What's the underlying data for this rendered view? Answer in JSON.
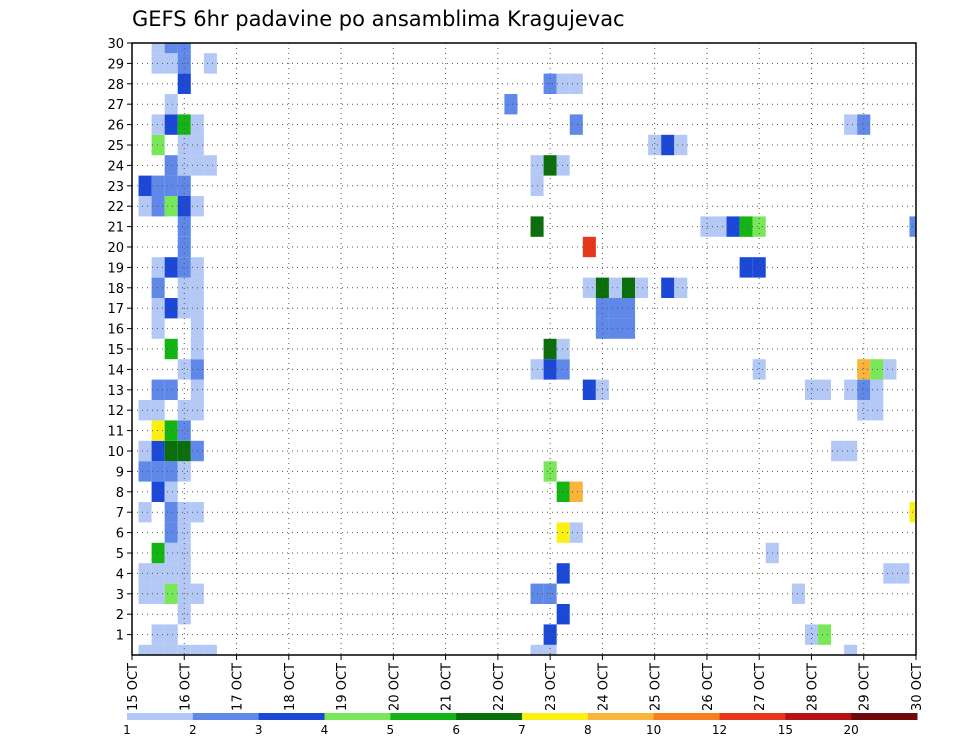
{
  "chart_data": {
    "type": "heatmap",
    "title": "GEFS 6hr padavine po ansamblima Kragujevac",
    "xlabel": "",
    "ylabel": "",
    "x_ticks": [
      "15 OCT",
      "16 OCT",
      "17 OCT",
      "18 OCT",
      "19 OCT",
      "20 OCT",
      "21 OCT",
      "22 OCT",
      "23 OCT",
      "24 OCT",
      "25 OCT",
      "26 OCT",
      "27 OCT",
      "28 OCT",
      "29 OCT",
      "30 OCT"
    ],
    "xlim": [
      "15 OCT",
      "30 OCT"
    ],
    "y_ticks": [
      "1",
      "2",
      "3",
      "4",
      "5",
      "6",
      "7",
      "8",
      "9",
      "10",
      "11",
      "12",
      "13",
      "14",
      "15",
      "16",
      "17",
      "18",
      "19",
      "20",
      "21",
      "22",
      "23",
      "24",
      "25",
      "26",
      "27",
      "28",
      "29",
      "30"
    ],
    "ylim": [
      0,
      30
    ],
    "grid": true,
    "colorbar": {
      "labels": [
        "1",
        "2",
        "3",
        "4",
        "5",
        "6",
        "7",
        "8",
        "10",
        "12",
        "15",
        "20"
      ],
      "colors": [
        "#b4c8f6",
        "#5f88e8",
        "#1c48d8",
        "#78e85a",
        "#14b414",
        "#0a6e0a",
        "#faf014",
        "#fab43c",
        "#f77f1f",
        "#e6371e",
        "#b41414",
        "#6e0a0a"
      ]
    },
    "cell_steps_per_day": 4,
    "cells": [
      [
        0,
        15.25,
        1
      ],
      [
        0,
        15.5,
        1
      ],
      [
        0,
        15.75,
        1
      ],
      [
        0,
        16,
        1
      ],
      [
        0,
        16.25,
        1
      ],
      [
        0,
        16.5,
        1
      ],
      [
        0,
        22.75,
        1
      ],
      [
        0,
        23,
        1
      ],
      [
        0,
        28.75,
        1
      ],
      [
        1,
        15.5,
        1
      ],
      [
        1,
        15.75,
        1
      ],
      [
        1,
        23,
        3
      ],
      [
        1,
        28,
        1
      ],
      [
        1,
        28.25,
        4
      ],
      [
        2,
        16,
        1
      ],
      [
        2,
        23.25,
        3
      ],
      [
        3,
        15.25,
        1
      ],
      [
        3,
        15.5,
        1
      ],
      [
        3,
        15.75,
        4
      ],
      [
        3,
        16,
        1
      ],
      [
        3,
        16.25,
        1
      ],
      [
        3,
        22.75,
        2
      ],
      [
        3,
        23,
        2
      ],
      [
        3,
        27.75,
        1
      ],
      [
        4,
        15.25,
        1
      ],
      [
        4,
        15.5,
        1
      ],
      [
        4,
        15.75,
        1
      ],
      [
        4,
        16,
        1
      ],
      [
        4,
        23.25,
        3
      ],
      [
        4,
        29.5,
        1
      ],
      [
        4,
        29.75,
        1
      ],
      [
        5,
        15.5,
        5
      ],
      [
        5,
        15.75,
        1
      ],
      [
        5,
        16,
        1
      ],
      [
        5,
        27.25,
        1
      ],
      [
        6,
        15.75,
        2
      ],
      [
        6,
        16,
        1
      ],
      [
        6,
        23.25,
        7
      ],
      [
        6,
        23.5,
        1
      ],
      [
        7,
        15.25,
        1
      ],
      [
        7,
        15.75,
        2
      ],
      [
        7,
        16,
        1
      ],
      [
        7,
        16.25,
        1
      ],
      [
        7,
        30,
        7
      ],
      [
        8,
        15.5,
        3
      ],
      [
        8,
        15.75,
        1
      ],
      [
        8,
        23.25,
        5
      ],
      [
        8,
        23.5,
        8
      ],
      [
        9,
        15.25,
        2
      ],
      [
        9,
        15.5,
        2
      ],
      [
        9,
        15.75,
        2
      ],
      [
        9,
        16,
        1
      ],
      [
        9,
        23,
        4
      ],
      [
        10,
        15.25,
        1
      ],
      [
        10,
        15.5,
        3
      ],
      [
        10,
        15.75,
        6
      ],
      [
        10,
        16,
        6
      ],
      [
        10,
        16.25,
        2
      ],
      [
        10,
        28.5,
        1
      ],
      [
        10,
        28.75,
        1
      ],
      [
        11,
        15.5,
        7
      ],
      [
        11,
        15.75,
        5
      ],
      [
        11,
        16,
        2
      ],
      [
        12,
        15.25,
        1
      ],
      [
        12,
        15.5,
        1
      ],
      [
        12,
        16,
        1
      ],
      [
        12,
        16.25,
        1
      ],
      [
        12,
        29,
        1
      ],
      [
        12,
        29.25,
        1
      ],
      [
        13,
        15.5,
        2
      ],
      [
        13,
        15.75,
        2
      ],
      [
        13,
        16.25,
        1
      ],
      [
        13,
        23.75,
        3
      ],
      [
        13,
        24,
        1
      ],
      [
        13,
        28,
        1
      ],
      [
        13,
        28.25,
        1
      ],
      [
        13,
        28.75,
        1
      ],
      [
        13,
        29,
        2
      ],
      [
        13,
        29.25,
        1
      ],
      [
        14,
        16,
        1
      ],
      [
        14,
        16.25,
        2
      ],
      [
        14,
        22.75,
        1
      ],
      [
        14,
        23,
        3
      ],
      [
        14,
        23.25,
        2
      ],
      [
        14,
        27,
        1
      ],
      [
        14,
        29,
        8
      ],
      [
        14,
        29.25,
        4
      ],
      [
        14,
        29.5,
        1
      ],
      [
        15,
        15.75,
        5
      ],
      [
        15,
        16.25,
        1
      ],
      [
        15,
        23,
        6
      ],
      [
        15,
        23.25,
        1
      ],
      [
        16,
        15.5,
        1
      ],
      [
        16,
        16.25,
        1
      ],
      [
        16,
        24,
        2
      ],
      [
        16,
        24.25,
        2
      ],
      [
        16,
        24.5,
        2
      ],
      [
        17,
        15.5,
        1
      ],
      [
        17,
        15.75,
        3
      ],
      [
        17,
        16,
        1
      ],
      [
        17,
        16.25,
        1
      ],
      [
        17,
        24,
        2
      ],
      [
        17,
        24.25,
        2
      ],
      [
        17,
        24.5,
        2
      ],
      [
        18,
        15.5,
        2
      ],
      [
        18,
        16,
        1
      ],
      [
        18,
        16.25,
        1
      ],
      [
        18,
        23.75,
        1
      ],
      [
        18,
        24,
        6
      ],
      [
        18,
        24.25,
        1
      ],
      [
        18,
        24.5,
        6
      ],
      [
        18,
        24.75,
        1
      ],
      [
        18,
        25.25,
        3
      ],
      [
        18,
        25.5,
        1
      ],
      [
        19,
        15.5,
        1
      ],
      [
        19,
        15.75,
        3
      ],
      [
        19,
        16,
        2
      ],
      [
        19,
        16.25,
        1
      ],
      [
        19,
        26.75,
        3
      ],
      [
        19,
        27,
        3
      ],
      [
        20,
        16,
        2
      ],
      [
        20,
        23.75,
        10
      ],
      [
        21,
        16,
        2
      ],
      [
        21,
        22.75,
        6
      ],
      [
        21,
        26,
        1
      ],
      [
        21,
        26.25,
        1
      ],
      [
        21,
        26.5,
        3
      ],
      [
        21,
        26.75,
        5
      ],
      [
        21,
        27,
        4
      ],
      [
        21,
        30,
        2
      ],
      [
        22,
        15.25,
        1
      ],
      [
        22,
        15.5,
        2
      ],
      [
        22,
        15.75,
        4
      ],
      [
        22,
        16,
        3
      ],
      [
        22,
        16.25,
        1
      ],
      [
        23,
        15.25,
        3
      ],
      [
        23,
        15.5,
        2
      ],
      [
        23,
        15.75,
        2
      ],
      [
        23,
        16,
        2
      ],
      [
        23,
        22.75,
        1
      ],
      [
        24,
        15.75,
        2
      ],
      [
        24,
        16,
        1
      ],
      [
        24,
        16.25,
        1
      ],
      [
        24,
        16.5,
        1
      ],
      [
        24,
        22.75,
        1
      ],
      [
        24,
        23,
        6
      ],
      [
        24,
        23.25,
        1
      ],
      [
        25,
        15.5,
        4
      ],
      [
        25,
        16,
        1
      ],
      [
        25,
        16.25,
        1
      ],
      [
        25,
        25,
        1
      ],
      [
        25,
        25.25,
        3
      ],
      [
        25,
        25.5,
        1
      ],
      [
        26,
        15.5,
        1
      ],
      [
        26,
        15.75,
        3
      ],
      [
        26,
        16,
        5
      ],
      [
        26,
        16.25,
        1
      ],
      [
        26,
        23.5,
        2
      ],
      [
        26,
        28.75,
        1
      ],
      [
        26,
        29,
        2
      ],
      [
        27,
        15.75,
        1
      ],
      [
        27,
        22.25,
        2
      ],
      [
        28,
        16,
        3
      ],
      [
        28,
        23,
        2
      ],
      [
        28,
        23.25,
        1
      ],
      [
        28,
        23.5,
        1
      ],
      [
        29,
        15.5,
        1
      ],
      [
        29,
        15.75,
        1
      ],
      [
        29,
        16,
        2
      ],
      [
        29,
        16.5,
        1
      ],
      [
        30,
        15.5,
        1
      ],
      [
        30,
        15.75,
        2
      ],
      [
        30,
        16,
        2
      ]
    ]
  }
}
